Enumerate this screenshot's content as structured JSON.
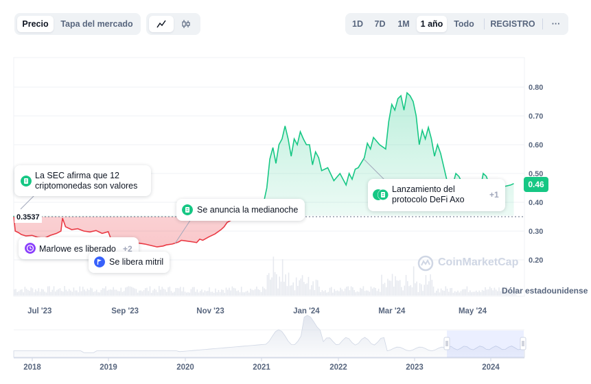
{
  "tabs": {
    "price_label": "Precio",
    "marketcap_label": "Tapa del mercado"
  },
  "chart_type_icons": [
    "line-chart-icon",
    "candlestick-icon"
  ],
  "ranges": {
    "d1": "1D",
    "d7": "7D",
    "m1": "1M",
    "y1": "1 año",
    "all": "Todo",
    "log": "REGISTRO",
    "more": "···"
  },
  "current_price": "0.46",
  "reference_price": "0.3537",
  "currency_label": "Dólar estadounidense",
  "watermark": "CoinMarketCap",
  "colors": {
    "up": "#16c784",
    "down": "#ea3943",
    "accent_blue": "#3861fb",
    "purple": "#8a3ffc"
  },
  "events": {
    "sec": {
      "text": "La SEC afirma que 12 criptomonedas son valores",
      "line1": "La SEC afirma que 12",
      "line2": "criptomonedas son valores",
      "icon": "document-icon"
    },
    "marlowe": {
      "text": "Marlowe es liberado",
      "more": "+2",
      "icon": "clock-icon"
    },
    "mithril": {
      "text": "Se libera mitril",
      "icon": "flag-icon"
    },
    "halving": {
      "text": "Se anuncia la medianoche",
      "icon": "document-icon"
    },
    "axo": {
      "line1": "Lanzamiento del",
      "line2": "protocolo DeFi Axo",
      "more": "+1",
      "icon": "document-icon"
    }
  },
  "chart_data": {
    "type": "line",
    "baseline": 0.3537,
    "x_ticks": [
      "Jul '23",
      "Sep '23",
      "Nov '23",
      "Jan '24",
      "Mar '24",
      "May '24"
    ],
    "y_ticks": [
      "0.80",
      "0.70",
      "0.60",
      "0.50",
      "0.40",
      "0.30",
      "0.20"
    ],
    "ylim": [
      0.15,
      0.85
    ],
    "series": [
      {
        "points": [
          [
            0,
            0.353
          ],
          [
            1,
            0.3
          ],
          [
            3,
            0.295
          ],
          [
            5,
            0.288
          ],
          [
            8,
            0.283
          ],
          [
            12,
            0.285
          ],
          [
            16,
            0.278
          ],
          [
            20,
            0.275
          ],
          [
            24,
            0.285
          ],
          [
            28,
            0.292
          ],
          [
            31,
            0.3
          ],
          [
            32,
            0.345
          ],
          [
            34,
            0.315
          ],
          [
            38,
            0.305
          ],
          [
            42,
            0.308
          ],
          [
            46,
            0.3
          ],
          [
            50,
            0.297
          ],
          [
            54,
            0.302
          ],
          [
            58,
            0.292
          ],
          [
            62,
            0.298
          ],
          [
            64,
            0.27
          ],
          [
            66,
            0.262
          ],
          [
            70,
            0.255
          ],
          [
            74,
            0.262
          ],
          [
            78,
            0.258
          ],
          [
            82,
            0.258
          ],
          [
            86,
            0.255
          ],
          [
            90,
            0.25
          ],
          [
            94,
            0.245
          ],
          [
            98,
            0.248
          ],
          [
            100,
            0.252
          ],
          [
            104,
            0.255
          ],
          [
            108,
            0.262
          ],
          [
            110,
            0.268
          ],
          [
            114,
            0.265
          ],
          [
            118,
            0.262
          ],
          [
            120,
            0.26
          ],
          [
            122,
            0.272
          ],
          [
            124,
            0.268
          ],
          [
            128,
            0.28
          ],
          [
            132,
            0.29
          ],
          [
            136,
            0.305
          ],
          [
            138,
            0.315
          ],
          [
            140,
            0.33
          ],
          [
            142,
            0.336
          ],
          [
            145,
            0.345
          ],
          [
            148,
            0.35
          ],
          [
            152,
            0.353
          ],
          [
            156,
            0.36
          ],
          [
            160,
            0.375
          ],
          [
            164,
            0.4
          ],
          [
            166,
            0.45
          ],
          [
            168,
            0.55
          ],
          [
            170,
            0.59
          ],
          [
            172,
            0.535
          ],
          [
            174,
            0.6
          ],
          [
            176,
            0.62
          ],
          [
            178,
            0.665
          ],
          [
            180,
            0.62
          ],
          [
            182,
            0.56
          ],
          [
            184,
            0.62
          ],
          [
            186,
            0.6
          ],
          [
            188,
            0.645
          ],
          [
            190,
            0.62
          ],
          [
            192,
            0.6
          ],
          [
            194,
            0.6
          ],
          [
            196,
            0.53
          ],
          [
            198,
            0.575
          ],
          [
            200,
            0.555
          ],
          [
            202,
            0.51
          ],
          [
            206,
            0.52
          ],
          [
            210,
            0.475
          ],
          [
            214,
            0.5
          ],
          [
            218,
            0.46
          ],
          [
            220,
            0.5
          ],
          [
            222,
            0.48
          ],
          [
            224,
            0.515
          ],
          [
            226,
            0.52
          ],
          [
            230,
            0.555
          ],
          [
            232,
            0.605
          ],
          [
            234,
            0.585
          ],
          [
            236,
            0.625
          ],
          [
            240,
            0.6
          ],
          [
            244,
            0.585
          ],
          [
            246,
            0.68
          ],
          [
            248,
            0.74
          ],
          [
            250,
            0.72
          ],
          [
            252,
            0.76
          ],
          [
            254,
            0.77
          ],
          [
            256,
            0.72
          ],
          [
            258,
            0.78
          ],
          [
            260,
            0.77
          ],
          [
            262,
            0.75
          ],
          [
            264,
            0.7
          ],
          [
            266,
            0.6
          ],
          [
            268,
            0.65
          ],
          [
            270,
            0.62
          ],
          [
            272,
            0.66
          ],
          [
            274,
            0.62
          ],
          [
            276,
            0.56
          ],
          [
            278,
            0.6
          ],
          [
            280,
            0.57
          ],
          [
            284,
            0.48
          ],
          [
            286,
            0.47
          ],
          [
            288,
            0.46
          ],
          [
            290,
            0.5
          ],
          [
            292,
            0.49
          ],
          [
            294,
            0.47
          ],
          [
            296,
            0.45
          ],
          [
            298,
            0.455
          ],
          [
            302,
            0.45
          ],
          [
            306,
            0.445
          ],
          [
            308,
            0.5
          ],
          [
            310,
            0.49
          ],
          [
            312,
            0.46
          ],
          [
            314,
            0.47
          ],
          [
            318,
            0.45
          ],
          [
            322,
            0.455
          ],
          [
            326,
            0.46
          ],
          [
            328,
            0.465
          ]
        ]
      }
    ],
    "navigator": {
      "x_ticks": [
        "2018",
        "2019",
        "2020",
        "2021",
        "2022",
        "2023",
        "2024"
      ],
      "selection": "1 año"
    }
  }
}
